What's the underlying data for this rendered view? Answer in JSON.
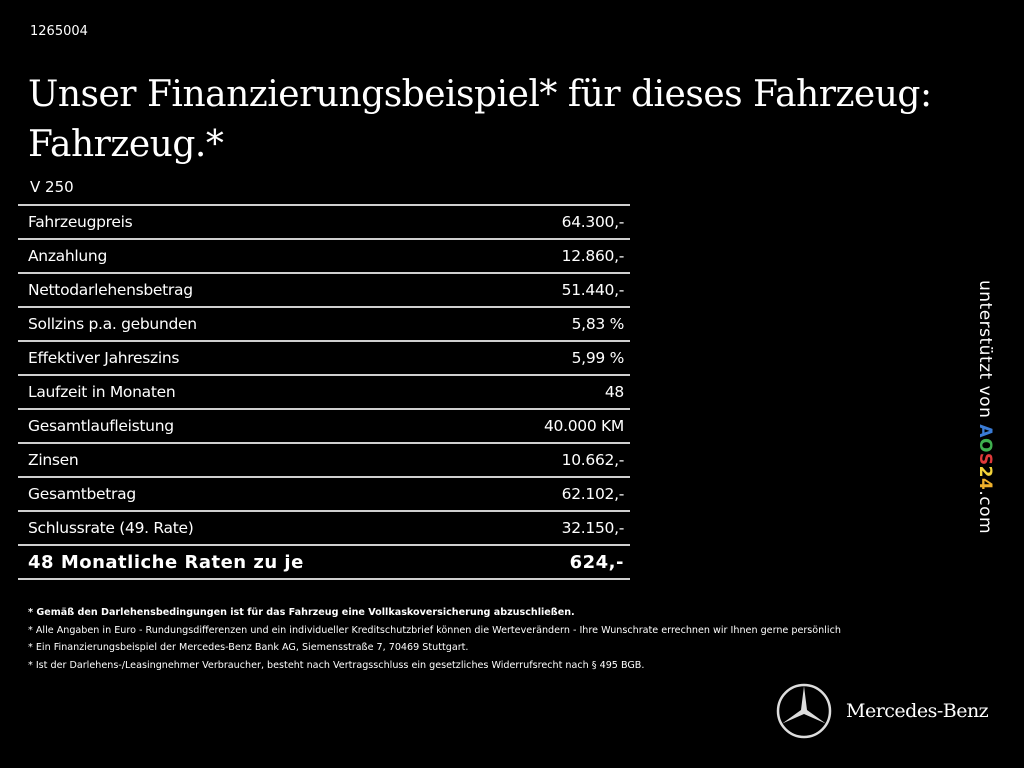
{
  "code": "1265004",
  "title_line1": "Unser Finanzierungsbeispiel* für dieses Fahrzeug:",
  "title_line2": "Fahrzeug.*",
  "model": "V 250",
  "rows": [
    {
      "label": "Fahrzeugpreis",
      "value": "64.300,-"
    },
    {
      "label": "Anzahlung",
      "value": "12.860,-"
    },
    {
      "label": "Nettodarlehensbetrag",
      "value": "51.440,-"
    },
    {
      "label": "Sollzins p.a. gebunden",
      "value": "5,83 %"
    },
    {
      "label": "Effektiver Jahreszins",
      "value": "5,99 %"
    },
    {
      "label": "Laufzeit in Monaten",
      "value": "48"
    },
    {
      "label": "Gesamtlaufleistung",
      "value": "40.000 KM"
    },
    {
      "label": "Zinsen",
      "value": "10.662,-"
    },
    {
      "label": "Gesamtbetrag",
      "value": "62.102,-"
    },
    {
      "label": "Schlussrate (49. Rate)",
      "value": "32.150,-"
    }
  ],
  "total": {
    "label": "48 Monatliche Raten zu je",
    "value": "624,-"
  },
  "notes": [
    "* Gemäß den Darlehensbedingungen ist für das Fahrzeug eine Vollkaskoversicherung abzuschließen.",
    "* Alle Angaben in Euro - Rundungsdifferenzen und ein individueller Kreditschutzbrief können die Werteverändern - Ihre Wunschrate errechnen wir Ihnen gerne persönlich",
    "* Ein Finanzierungsbeispiel der Mercedes-Benz Bank AG, Siemensstraße 7, 70469 Stuttgart.",
    "* Ist der Darlehens-/Leasingnehmer Verbraucher, besteht nach Vertragsschluss ein gesetzliches Widerrufsrecht nach § 495 BGB."
  ],
  "side": {
    "prefix": "unterstützt von ",
    "letters": [
      [
        "A",
        "#3a7bd5"
      ],
      [
        "O",
        "#3fb04f"
      ],
      [
        "S",
        "#e03a3a"
      ],
      [
        "2",
        "#f2d33a"
      ],
      [
        "4",
        "#f0b12c"
      ]
    ],
    "suffix": ".com"
  },
  "brand": "Mercedes-Benz",
  "brand_icon": "mercedes-star-icon"
}
